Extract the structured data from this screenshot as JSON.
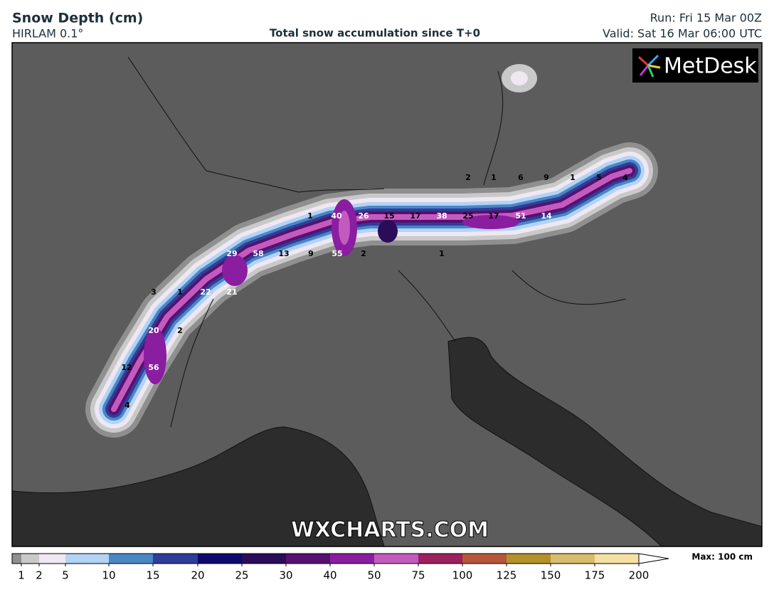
{
  "header": {
    "title": "Snow Depth (cm)",
    "model": "HIRLAM 0.1°",
    "subtitle": "Total snow accumulation since T+0",
    "run": "Run: Fri 15 Mar 00Z",
    "valid": "Valid: Sat 16 Mar 06:00 UTC"
  },
  "logo": "MetDesk",
  "watermark": "WXCHARTS.COM",
  "legend": {
    "levels": [
      1,
      2,
      5,
      10,
      15,
      20,
      25,
      30,
      40,
      50,
      75,
      100,
      125,
      150,
      175,
      200
    ],
    "colors": [
      "#8f8f8f",
      "#c9c9c9",
      "#efe8f2",
      "#b3d3f5",
      "#4b86c4",
      "#2e3d98",
      "#0d0a6e",
      "#2a0c5a",
      "#56106f",
      "#8a1da0",
      "#c35bbf",
      "#9c215e",
      "#b5563c",
      "#b29128",
      "#d9bc6c",
      "#f4e0a2"
    ],
    "max_label": "Max: 100 cm"
  },
  "map_labels": [
    2,
    1,
    6,
    9,
    1,
    5,
    4,
    1,
    40,
    26,
    15,
    17,
    38,
    25,
    17,
    51,
    14,
    29,
    58,
    13,
    9,
    55,
    2,
    1,
    3,
    1,
    22,
    21,
    20,
    2,
    12,
    56,
    4
  ]
}
